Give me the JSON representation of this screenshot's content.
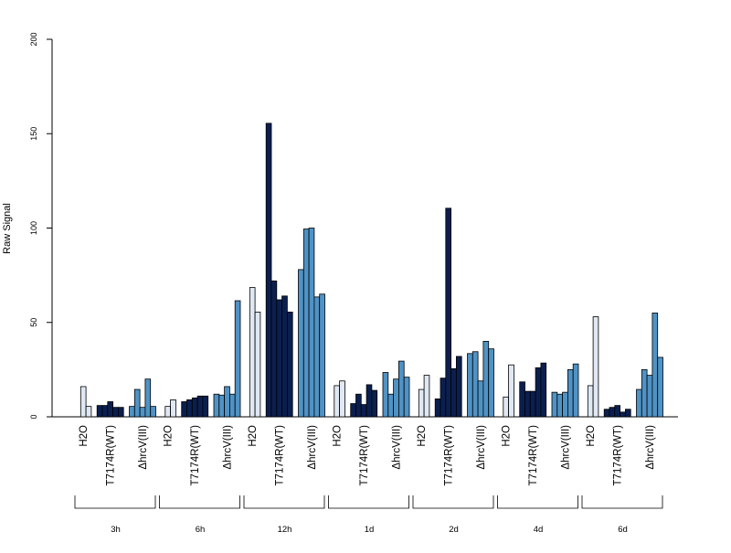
{
  "chart_data": {
    "type": "bar",
    "title": "",
    "xlabel": "",
    "ylabel": "Raw Signal",
    "ylim": [
      0,
      200
    ],
    "y_ticks": [
      "0",
      "50",
      "100",
      "150",
      "200"
    ],
    "grid": false,
    "legend": "none",
    "colors": {
      "H2O": "#dfe8f3",
      "T7174R(WT)": "#0b1f4f",
      "ΔhrcV(III)": "#4f93c6"
    },
    "groups": [
      {
        "time": "3h",
        "conditions": [
          {
            "label": "H2O",
            "values": [
              0,
              16,
              5.5
            ]
          },
          {
            "label": "T7174R(WT)",
            "values": [
              6,
              6,
              8,
              5,
              5
            ]
          },
          {
            "label": "ΔhrcV(III)",
            "values": [
              5.5,
              14.5,
              5,
              20,
              5.5
            ]
          }
        ]
      },
      {
        "time": "6h",
        "conditions": [
          {
            "label": "H2O",
            "values": [
              0,
              5.5,
              9
            ]
          },
          {
            "label": "T7174R(WT)",
            "values": [
              8,
              9,
              10,
              11,
              11
            ]
          },
          {
            "label": "ΔhrcV(III)",
            "values": [
              12,
              11.5,
              16,
              12,
              61.5
            ]
          }
        ]
      },
      {
        "time": "12h",
        "conditions": [
          {
            "label": "H2O",
            "values": [
              0,
              68.5,
              55.5
            ]
          },
          {
            "label": "T7174R(WT)",
            "values": [
              155.5,
              72,
              62,
              64,
              55.5
            ]
          },
          {
            "label": "ΔhrcV(III)",
            "values": [
              78,
              99.5,
              100,
              63.5,
              65
            ]
          }
        ]
      },
      {
        "time": "1d",
        "conditions": [
          {
            "label": "H2O",
            "values": [
              0,
              16.5,
              19
            ]
          },
          {
            "label": "T7174R(WT)",
            "values": [
              7,
              12,
              6.5,
              17,
              14
            ]
          },
          {
            "label": "ΔhrcV(III)",
            "values": [
              23.5,
              12,
              20,
              29.5,
              21
            ]
          }
        ]
      },
      {
        "time": "2d",
        "conditions": [
          {
            "label": "H2O",
            "values": [
              0,
              14.5,
              22
            ]
          },
          {
            "label": "T7174R(WT)",
            "values": [
              9.5,
              20.5,
              110.5,
              25.5,
              32
            ]
          },
          {
            "label": "ΔhrcV(III)",
            "values": [
              33.5,
              34.5,
              19,
              40,
              36
            ]
          }
        ]
      },
      {
        "time": "4d",
        "conditions": [
          {
            "label": "H2O",
            "values": [
              0,
              10.5,
              27.5
            ]
          },
          {
            "label": "T7174R(WT)",
            "values": [
              18.5,
              13.5,
              13.5,
              26,
              28.5
            ]
          },
          {
            "label": "ΔhrcV(III)",
            "values": [
              13,
              12,
              13,
              25,
              28
            ]
          }
        ]
      },
      {
        "time": "6d",
        "conditions": [
          {
            "label": "H2O",
            "values": [
              0,
              16.5,
              53
            ]
          },
          {
            "label": "T7174R(WT)",
            "values": [
              4,
              5,
              6,
              2.5,
              4
            ]
          },
          {
            "label": "ΔhrcV(III)",
            "values": [
              14.5,
              25,
              22,
              55,
              31.5
            ]
          }
        ]
      }
    ]
  }
}
